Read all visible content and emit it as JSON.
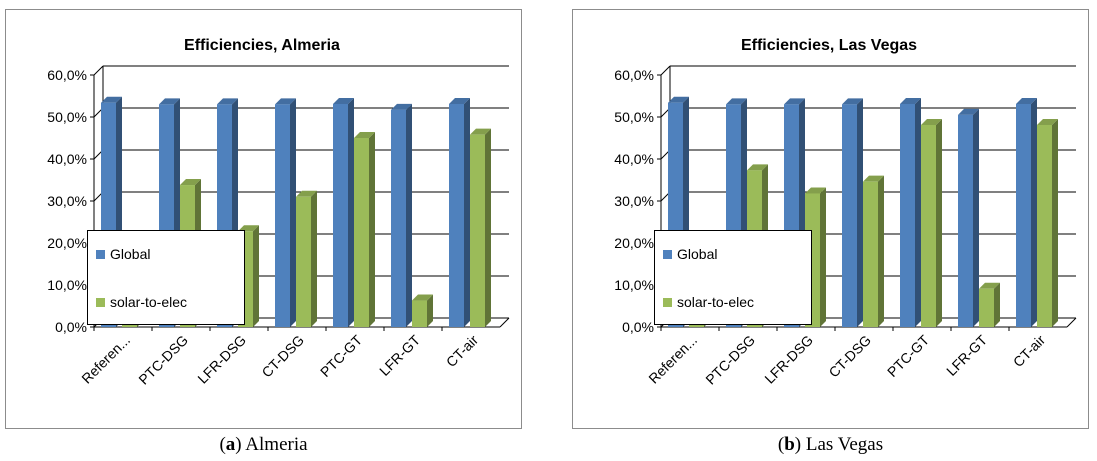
{
  "chart_data": [
    {
      "type": "bar",
      "title": "Efficiencies, Almeria",
      "caption_letter": "a",
      "caption_text": " Almeria",
      "categories": [
        "Referen...",
        "PTC-DSG",
        "LFR-DSG",
        "CT-DSG",
        "PTC-GT",
        "LFR-GT",
        "CT-air"
      ],
      "series": [
        {
          "name": "Global",
          "color": "#4f81bd",
          "values": [
            53.4,
            53.0,
            53.0,
            53.0,
            53.1,
            51.7,
            53.1
          ]
        },
        {
          "name": "solar-to-elec",
          "color": "#9bbb59",
          "values": [
            1.0,
            33.8,
            22.8,
            31.0,
            45.0,
            6.3,
            45.8
          ]
        }
      ],
      "yticks": [
        "0,0%",
        "10,0%",
        "20,0%",
        "30,0%",
        "40,0%",
        "50,0%",
        "60,0%"
      ],
      "ylim": [
        0,
        60
      ],
      "grid": true,
      "legend_position": "lower-left, inside plot"
    },
    {
      "type": "bar",
      "title": "Efficiencies, Las Vegas",
      "caption_letter": "b",
      "caption_text": " Las Vegas",
      "categories": [
        "Referen...",
        "PTC-DSG",
        "LFR-DSG",
        "CT-DSG",
        "PTC-GT",
        "LFR-GT",
        "CT-air"
      ],
      "series": [
        {
          "name": "Global",
          "color": "#4f81bd",
          "values": [
            53.4,
            53.0,
            53.0,
            53.0,
            53.1,
            50.5,
            53.1
          ]
        },
        {
          "name": "solar-to-elec",
          "color": "#9bbb59",
          "values": [
            1.0,
            37.3,
            31.8,
            34.6,
            48.1,
            9.1,
            48.1
          ]
        }
      ],
      "yticks": [
        "0,0%",
        "10,0%",
        "20,0%",
        "30,0%",
        "40,0%",
        "50,0%",
        "60,0%"
      ],
      "ylim": [
        0,
        60
      ],
      "grid": true,
      "legend_position": "lower-left, inside plot"
    }
  ]
}
